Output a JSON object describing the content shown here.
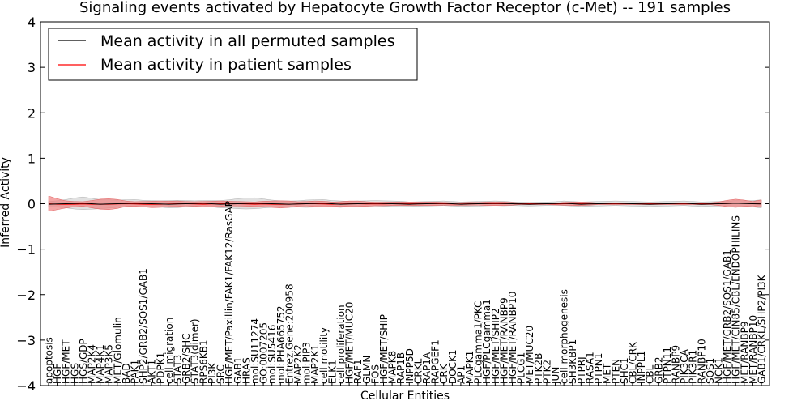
{
  "chart_data": {
    "type": "line",
    "title": "Signaling events activated by Hepatocyte Growth Factor Receptor (c-Met) -- 191 samples",
    "xlabel": "Cellular Entities",
    "ylabel": "Inferred Activity",
    "ylim": [
      -4,
      4
    ],
    "yticks": [
      "4",
      "3",
      "2",
      "1",
      "0",
      "−1",
      "−2",
      "−3",
      "−4"
    ],
    "legend_position": "top-left",
    "categories": [
      "apoptosis",
      "HGF",
      "HGF/MET",
      "HGS",
      "HGS/GDP",
      "MAP2K4",
      "MAP4K1",
      "MAP3K5",
      "MET/Glomulin",
      "BAD",
      "PAK1",
      "SHP2/GRB2/SOS1/GAB1",
      "AKT1",
      "PDPK1",
      "cell migration",
      "STAT3",
      "GRB2/SHC",
      "STAT3(dimer)",
      "RPS6KB1",
      "PI3K",
      "SRC",
      "HGF/MET/Paxillin/FAK1/FAK12/RasGAP",
      "GAB1",
      "HRAS",
      "mol:SU11274",
      "GO:0007205",
      "mol:SU5416",
      "mol:PHA665752",
      "Entrez.Gene:200958",
      "MAP2K2",
      "mol:PIP3",
      "MAP2K1",
      "cell motility",
      "ELK1",
      "cell proliferation",
      "HGF/MET/MUC20",
      "RAF1",
      "GLMN",
      "FOS",
      "HGF/MET/SHIP",
      "MAPK8",
      "RAP1B",
      "INPP5D",
      "CRKL",
      "RAP1A",
      "RAPGEF1",
      "CRK",
      "DOCK1",
      "AP1",
      "MAPK1",
      "PLCgamma1/PKC",
      "HGF/PLCgamma1",
      "HGF/MET/SHIP2",
      "HGF/MET/RANBP9",
      "HGF/MET/RANBP10",
      "PLCG1",
      "MET/MUC20",
      "PTK2B",
      "PTK2",
      "JUN",
      "cell morphogenesis",
      "SH3KBP1",
      "PTPRJ",
      "RASA1",
      "PTPN1",
      "MET",
      "PTEN",
      "SHC1",
      "CBL/CRK",
      "INPPL1",
      "CBL",
      "GRB2",
      "PTPN11",
      "RANBP9",
      "PIK3CA",
      "PIK3R1",
      "RANBP10",
      "SOS1",
      "NCK1",
      "HGF/MET/GRB2/SOS1/GAB1",
      "HGF/MET/CIN85/CBL/ENDOPHILINS",
      "MET/RANBP9",
      "MET/RANBP10",
      "GAB1/CRKL/SHP2/PI3K"
    ],
    "series": [
      {
        "name": "Mean activity in all permuted samples",
        "color": "#000000",
        "values": [
          -0.01,
          -0.005,
          0,
          0.005,
          0.01,
          0,
          -0.01,
          -0.005,
          0,
          0.005,
          0.01,
          0.005,
          0,
          -0.005,
          -0.01,
          -0.005,
          0,
          0.005,
          0.01,
          0,
          -0.01,
          -0.005,
          0,
          0.005,
          0.01,
          0.005,
          0,
          -0.005,
          -0.01,
          -0.005,
          0,
          0.005,
          0.01,
          0,
          -0.01,
          -0.005,
          0,
          0.005,
          0.01,
          0.005,
          0,
          -0.005,
          -0.01,
          -0.005,
          0,
          0.005,
          0.01,
          0,
          -0.01,
          -0.005,
          0,
          0.005,
          0.01,
          0.005,
          0,
          -0.005,
          -0.01,
          -0.005,
          0,
          0.005,
          0.01,
          0,
          -0.01,
          -0.005,
          0,
          0.005,
          0.01,
          0.005,
          0,
          -0.005,
          -0.01,
          -0.005,
          0,
          0.005,
          0.01,
          0,
          -0.01,
          -0.005,
          0,
          0.005,
          0.01,
          0.005,
          0,
          -0.005
        ],
        "band": [
          0.06,
          0.07,
          0.09,
          0.12,
          0.14,
          0.12,
          0.1,
          0.09,
          0.08,
          0.08,
          0.08,
          0.07,
          0.07,
          0.07,
          0.08,
          0.08,
          0.07,
          0.06,
          0.06,
          0.07,
          0.08,
          0.09,
          0.11,
          0.12,
          0.12,
          0.1,
          0.08,
          0.07,
          0.07,
          0.07,
          0.08,
          0.08,
          0.08,
          0.07,
          0.07,
          0.06,
          0.06,
          0.06,
          0.06,
          0.06,
          0.06,
          0.06,
          0.05,
          0.05,
          0.05,
          0.05,
          0.05,
          0.05,
          0.05,
          0.05,
          0.05,
          0.05,
          0.05,
          0.05,
          0.04,
          0.04,
          0.04,
          0.04,
          0.04,
          0.04,
          0.05,
          0.05,
          0.05,
          0.05,
          0.05,
          0.05,
          0.05,
          0.05,
          0.05,
          0.05,
          0.05,
          0.05,
          0.05,
          0.05,
          0.05,
          0.05,
          0.05,
          0.05,
          0.05,
          0.05,
          0.06,
          0.06,
          0.07,
          0.09
        ]
      },
      {
        "name": "Mean activity in patient samples",
        "color": "#ff0000",
        "band_color": "#f08080",
        "values": [
          0,
          -0.01,
          -0.015,
          -0.01,
          -0.005,
          -0.01,
          -0.01,
          -0.01,
          -0.005,
          0,
          -0.005,
          -0.01,
          -0.015,
          -0.01,
          -0.005,
          0,
          0,
          -0.005,
          -0.01,
          -0.005,
          0,
          0.005,
          0,
          -0.005,
          -0.01,
          -0.005,
          -0.01,
          -0.015,
          -0.01,
          -0.005,
          0,
          0,
          -0.005,
          -0.01,
          -0.005,
          0,
          0,
          -0.005,
          -0.005,
          -0.005,
          0,
          0,
          0,
          0,
          0,
          0,
          0,
          -0.005,
          -0.005,
          0,
          0,
          0,
          0,
          0,
          0,
          0,
          0,
          0,
          0,
          -0.005,
          0,
          0,
          0,
          0,
          0,
          0,
          0,
          0,
          0,
          0,
          0,
          0,
          0,
          0,
          0,
          0,
          0,
          0,
          0,
          0.005,
          0.01,
          0.01,
          0,
          0.005
        ],
        "band": [
          0.17,
          0.12,
          0.08,
          0.06,
          0.05,
          0.08,
          0.11,
          0.12,
          0.1,
          0.06,
          0.05,
          0.06,
          0.07,
          0.07,
          0.06,
          0.06,
          0.05,
          0.05,
          0.06,
          0.06,
          0.06,
          0.05,
          0.05,
          0.05,
          0.05,
          0.06,
          0.07,
          0.08,
          0.07,
          0.05,
          0.05,
          0.06,
          0.06,
          0.05,
          0.05,
          0.06,
          0.06,
          0.05,
          0.04,
          0.04,
          0.04,
          0.04,
          0.04,
          0.04,
          0.04,
          0.04,
          0.03,
          0.03,
          0.03,
          0.03,
          0.03,
          0.04,
          0.04,
          0.04,
          0.03,
          0.02,
          0.02,
          0.02,
          0.02,
          0.02,
          0.03,
          0.04,
          0.04,
          0.03,
          0.02,
          0.02,
          0.02,
          0.02,
          0.02,
          0.02,
          0.02,
          0.02,
          0.02,
          0.02,
          0.02,
          0.02,
          0.02,
          0.02,
          0.04,
          0.07,
          0.09,
          0.07,
          0.05,
          0.08
        ]
      }
    ]
  }
}
